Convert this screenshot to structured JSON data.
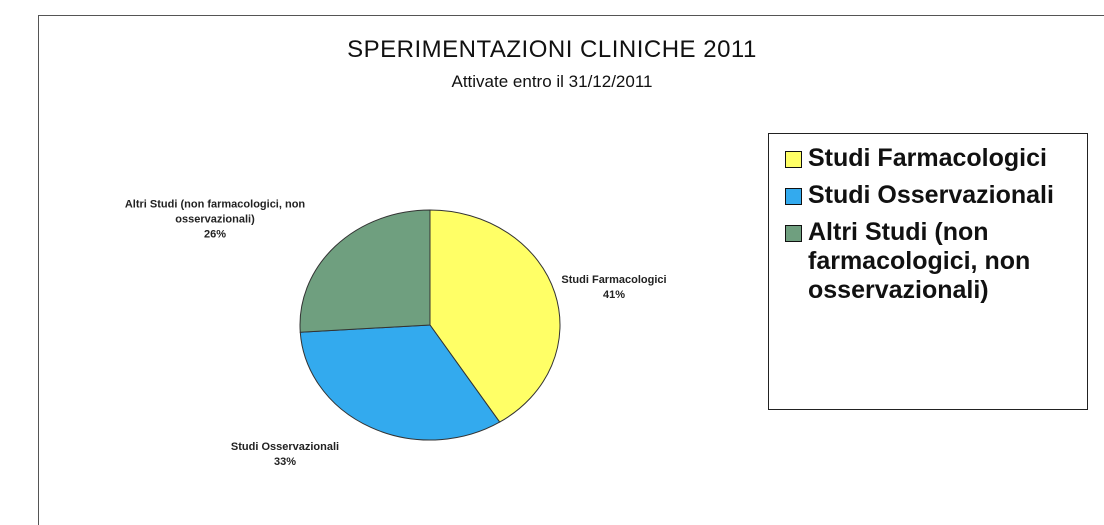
{
  "chart_data": {
    "type": "pie",
    "title": "SPERIMENTAZIONI  CLINICHE 2011",
    "subtitle": "Attivate entro il 31/12/2011",
    "categories": [
      "Studi Farmacologici",
      "Studi Osservazionali",
      "Altri Studi (non farmacologici, non osservazionali)"
    ],
    "values": [
      41,
      33,
      26
    ],
    "value_labels": [
      "41%",
      "33%",
      "26%"
    ],
    "colors": [
      "#ffff66",
      "#33aaee",
      "#6f9f7f"
    ],
    "legend": "right"
  }
}
